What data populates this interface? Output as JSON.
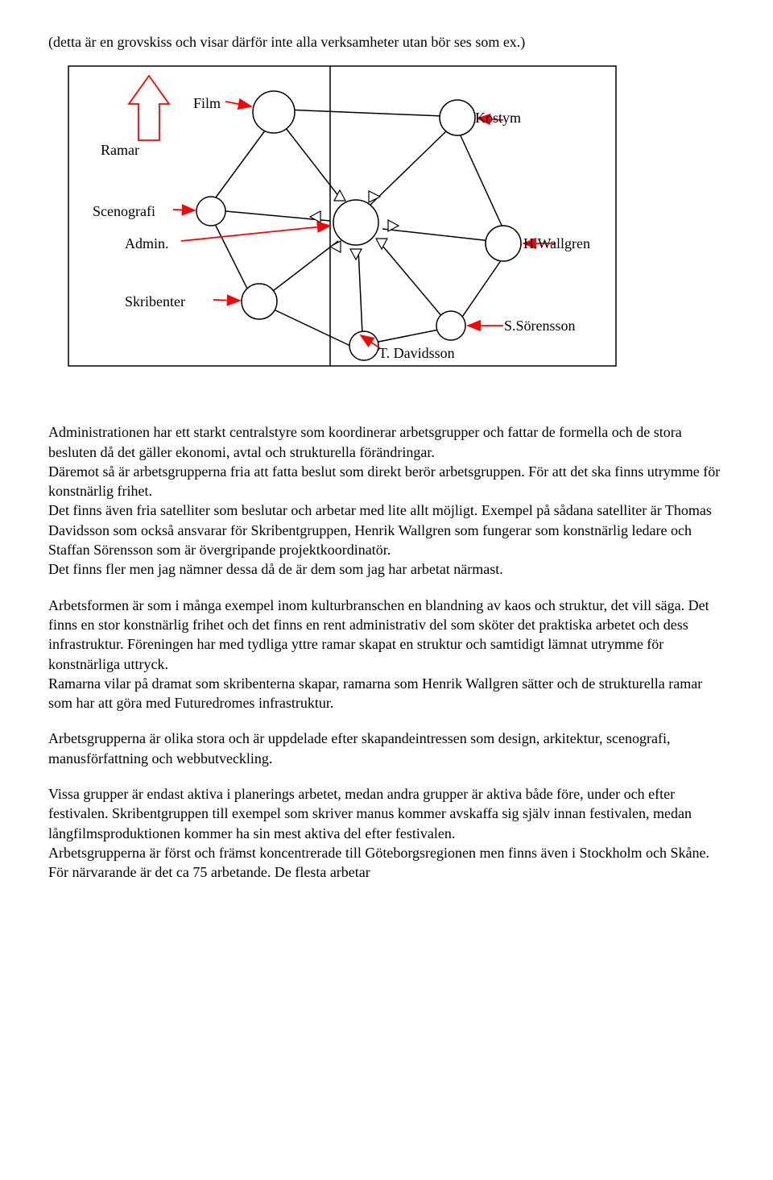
{
  "intro": "(detta är en grovskiss och visar därför inte alla verksamheter utan bör ses som ex.)",
  "diagram": {
    "labels": {
      "film": "Film",
      "kostym": "Kostym",
      "ramar": "Ramar",
      "scenografi": "Scenografi",
      "admin": "Admin.",
      "skribenter": "Skribenter",
      "hwallgren": "H.Wallgren",
      "tdavidsson": "T. Davidsson",
      "ssorensson": "S.Sörensson"
    },
    "colors": {
      "red": "#ff0000",
      "black": "#000000"
    }
  },
  "paragraphs": {
    "p1": "Administrationen har ett starkt centralstyre som koordinerar  arbetsgrupper och fattar de formella och de stora besluten då det gäller ekonomi, avtal och strukturella förändringar.\nDäremot så är arbetsgrupperna fria att fatta beslut som direkt berör arbetsgruppen. För att det ska finns utrymme för konstnärlig frihet.\nDet finns även fria satelliter som beslutar och arbetar med lite allt möjligt. Exempel på sådana satelliter är Thomas Davidsson som också ansvarar för Skribentgruppen, Henrik Wallgren som fungerar som konstnärlig ledare och Staffan Sörensson som är övergripande projektkoordinatör.\nDet finns fler men jag nämner dessa då de är dem som jag har arbetat närmast.",
    "p2": "Arbetsformen är som i många exempel inom kulturbranschen en blandning av kaos och struktur, det vill säga. Det finns en stor konstnärlig frihet och det finns en rent administrativ del som sköter det praktiska arbetet och dess infrastruktur. Föreningen har med tydliga yttre ramar skapat en struktur och samtidigt lämnat utrymme för konstnärliga uttryck.\nRamarna vilar på dramat som skribenterna skapar, ramarna som Henrik Wallgren sätter och de strukturella ramar som har att göra med Futuredromes infrastruktur.",
    "p3": "Arbetsgrupperna är olika stora och är uppdelade efter skapandeintressen som design, arkitektur, scenografi, manusförfattning och webbutveckling.",
    "p4": "Vissa grupper är endast aktiva i planerings arbetet, medan andra grupper är aktiva både före, under och efter festivalen. Skribentgruppen till exempel som skriver manus kommer avskaffa sig själv innan festivalen, medan långfilmsproduktionen kommer ha sin mest aktiva del efter festivalen.\nArbetsgrupperna är först och främst koncentrerade till Göteborgsregionen men finns även i Stockholm och Skåne. För närvarande är det ca 75 arbetande. De flesta arbetar"
  }
}
